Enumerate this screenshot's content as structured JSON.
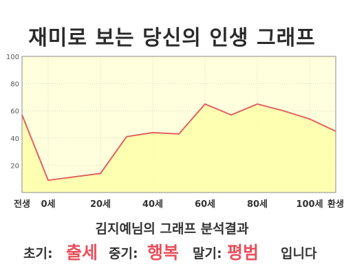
{
  "title": "재미로 보는 당신의 인생 그래프",
  "subtitle": "김지예님의 그래프 분석결과",
  "result": {
    "early_label": "초기:",
    "early_value": "출세",
    "mid_label": "중기:",
    "mid_value": "행복",
    "late_label": "말기:",
    "late_value": "평범",
    "suffix": "입니다"
  },
  "colors": {
    "plot_fill": "#ffffdd",
    "area_fill": "#ffffaa",
    "line": "#e06060",
    "accent": "#e8505b"
  },
  "chart_data": {
    "type": "area",
    "title": "",
    "xlabel": "",
    "ylabel": "",
    "ylim": [
      0,
      100
    ],
    "yticks": [
      20,
      40,
      60,
      80,
      100
    ],
    "xticks": [
      {
        "x": -10,
        "label": "전생"
      },
      {
        "x": 0,
        "label": "0세"
      },
      {
        "x": 20,
        "label": "20세"
      },
      {
        "x": 40,
        "label": "40세"
      },
      {
        "x": 60,
        "label": "60세"
      },
      {
        "x": 80,
        "label": "80세"
      },
      {
        "x": 100,
        "label": "100세"
      },
      {
        "x": 110,
        "label": "환생"
      }
    ],
    "xlim": [
      -10,
      110
    ],
    "grid": true,
    "series": [
      {
        "x": [
          -10,
          0,
          20,
          30,
          40,
          50,
          60,
          70,
          80,
          90,
          100,
          110
        ],
        "values": [
          57,
          9,
          14,
          41,
          44,
          43,
          65,
          57,
          65,
          60,
          54,
          45
        ]
      }
    ]
  }
}
